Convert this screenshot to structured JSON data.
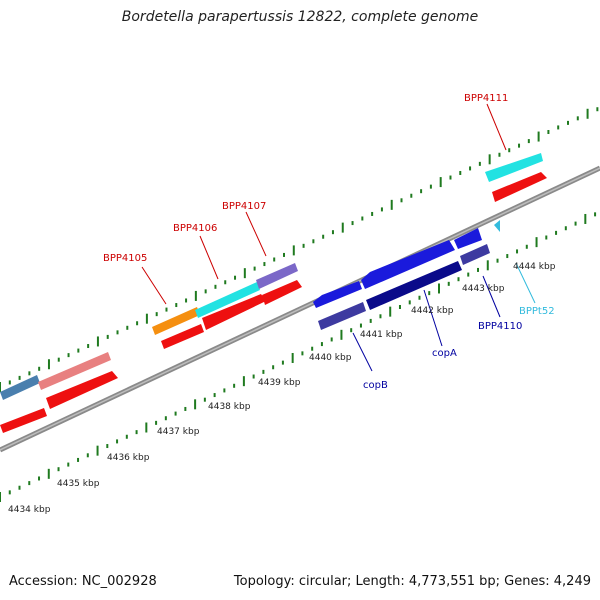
{
  "title": "Bordetella parapertussis 12822, complete genome",
  "accession": "Accession: NC_002928",
  "summary": "Topology: circular; Length: 4,773,551 bp; Genes: 4,249",
  "kbp_ticks": [
    "4434 kbp",
    "4435 kbp",
    "4436 kbp",
    "4437 kbp",
    "4438 kbp",
    "4439 kbp",
    "4440 kbp",
    "4441 kbp",
    "4442 kbp",
    "4443 kbp",
    "4444 kbp"
  ],
  "gene_labels": {
    "BPP4105": "BPP4105",
    "BPP4106": "BPP4106",
    "BPP4107": "BPP4107",
    "BPP4111": "BPP4111",
    "BPP4110": "BPP4110",
    "copA": "copA",
    "copB": "copB",
    "BPPt52": "BPPt52"
  },
  "colors": {
    "backbone": "#8c8c8c",
    "tick": "#1f7a1f",
    "red_label": "#cc0000",
    "blue_label": "#0000a0",
    "cyan_label": "#33bbdd"
  }
}
